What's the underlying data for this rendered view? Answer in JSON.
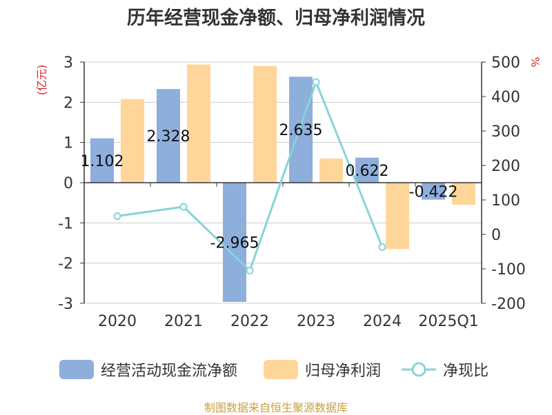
{
  "chart_data": {
    "type": "bar",
    "title": "历年经营现金净额、归母净利润情况",
    "categories": [
      "2020",
      "2021",
      "2022",
      "2023",
      "2024",
      "2025Q1"
    ],
    "left_axis": {
      "label": "(亿元)",
      "ylim": [
        -3,
        3
      ],
      "ticks": [
        "3",
        "2",
        "1",
        "0",
        "-1",
        "-2",
        "-3"
      ]
    },
    "right_axis": {
      "label": "%",
      "ylim": [
        -200,
        500
      ],
      "ticks": [
        "500",
        "400",
        "300",
        "200",
        "100",
        "0",
        "-100",
        "-200"
      ]
    },
    "series": [
      {
        "name": "经营活动现金流净额",
        "kind": "bar",
        "axis": "left",
        "color": "#8eaedb",
        "values": [
          1.102,
          2.328,
          -2.965,
          2.635,
          0.622,
          -0.422
        ],
        "labels": [
          "1.102",
          "2.328",
          "-2.965",
          "2.635",
          "0.622",
          "-0.422"
        ]
      },
      {
        "name": "归母净利润",
        "kind": "bar",
        "axis": "left",
        "color": "#ffd699",
        "values": [
          2.08,
          2.94,
          2.9,
          0.6,
          -1.65,
          -0.55
        ]
      },
      {
        "name": "净现比",
        "kind": "line",
        "axis": "right",
        "color": "#87d3d8",
        "values": [
          53,
          80,
          -105,
          442,
          -37,
          null
        ]
      }
    ],
    "grid": true,
    "legend": "bottom"
  },
  "source_note": "制图数据来自恒生聚源数据库"
}
